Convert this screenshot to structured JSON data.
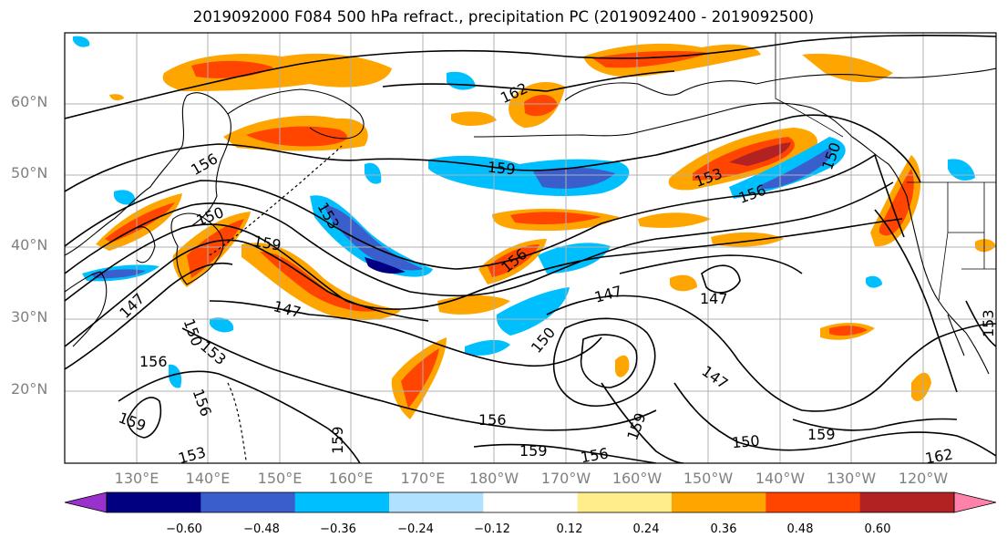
{
  "title": "2019092000 F084 500 hPa refract., precipitation PC (2019092400 - 2019092500)",
  "lat_labels": [
    "60°N",
    "50°N",
    "40°N",
    "30°N",
    "20°N"
  ],
  "lon_labels": [
    "130°E",
    "140°E",
    "150°E",
    "160°E",
    "170°E",
    "180°W",
    "170°W",
    "160°W",
    "150°W",
    "140°W",
    "130°W",
    "120°W"
  ],
  "contour_labels": [
    "162",
    "156",
    "159",
    "153",
    "150",
    "147",
    "159",
    "156",
    "147",
    "153",
    "156",
    "150",
    "147",
    "150",
    "147",
    "156",
    "159",
    "159",
    "156",
    "150",
    "159",
    "153",
    "159",
    "156",
    "162",
    "153",
    "150",
    "153",
    "156",
    "159",
    "147"
  ],
  "colorbar": {
    "tick_labels": [
      "−0.60",
      "−0.48",
      "−0.36",
      "−0.24",
      "−0.12",
      "0.12",
      "0.24",
      "0.36",
      "0.48",
      "0.60"
    ],
    "colors": [
      "#9932cc",
      "#000080",
      "#3a5fcd",
      "#00bfff",
      "#b0e2ff",
      "#ffffff",
      "#ffec8b",
      "#ffa500",
      "#ff4500",
      "#b22222",
      "#ff82ab"
    ]
  },
  "palette": {
    "land_line": "#000000",
    "grid": "#b0b0b0",
    "contour": "#000000"
  }
}
